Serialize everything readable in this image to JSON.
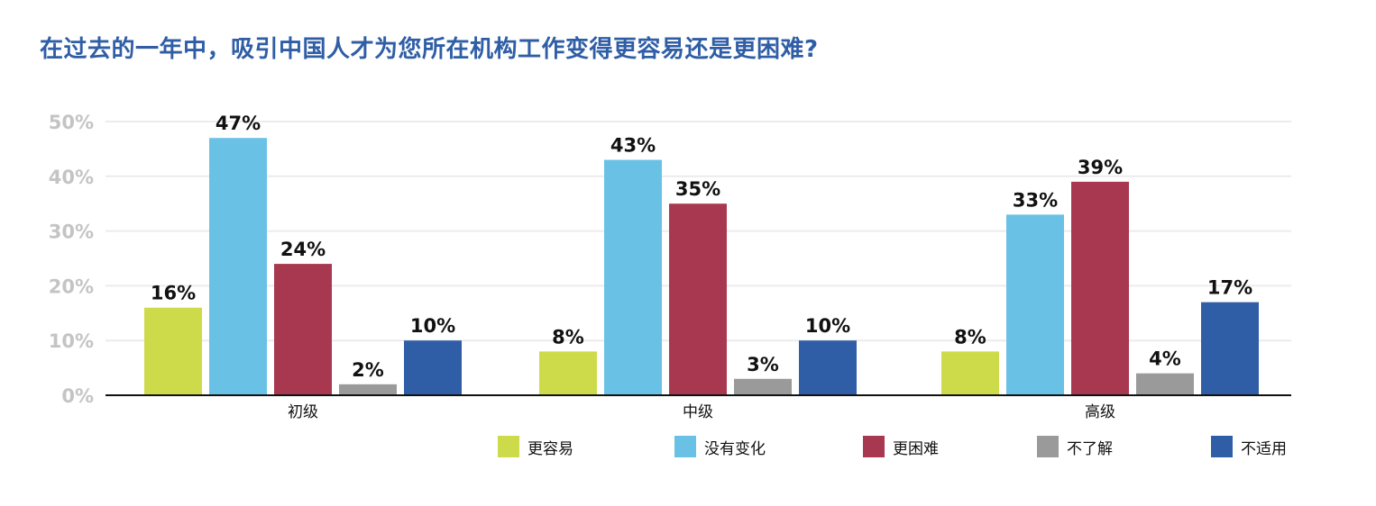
{
  "title": "在过去的一年中，吸引中国人才为您所在机构工作变得更容易还是更困难?",
  "chart_data": {
    "type": "bar",
    "categories": [
      "初级",
      "中级",
      "高级"
    ],
    "series": [
      {
        "name": "更容易",
        "color": "#cddb4a",
        "values": [
          16,
          8,
          8
        ]
      },
      {
        "name": "没有变化",
        "color": "#69c1e6",
        "values": [
          47,
          43,
          33
        ]
      },
      {
        "name": "更困难",
        "color": "#a8384f",
        "values": [
          24,
          35,
          39
        ]
      },
      {
        "name": "不了解",
        "color": "#9a9a9a",
        "values": [
          2,
          3,
          4
        ]
      },
      {
        "name": "不适用",
        "color": "#2f5ea6",
        "values": [
          10,
          10,
          17
        ]
      }
    ],
    "data_labels": [
      [
        "16%",
        "8%",
        "8%"
      ],
      [
        "47%",
        "43%",
        "33%"
      ],
      [
        "24%",
        "35%",
        "39%"
      ],
      [
        "2%",
        "3%",
        "4%"
      ],
      [
        "10%",
        "10%",
        "17%"
      ]
    ],
    "y_ticks": [
      "0%",
      "10%",
      "20%",
      "30%",
      "40%",
      "50%"
    ],
    "ylim": [
      0,
      50
    ],
    "grid": true,
    "legend_position": "bottom-right"
  }
}
